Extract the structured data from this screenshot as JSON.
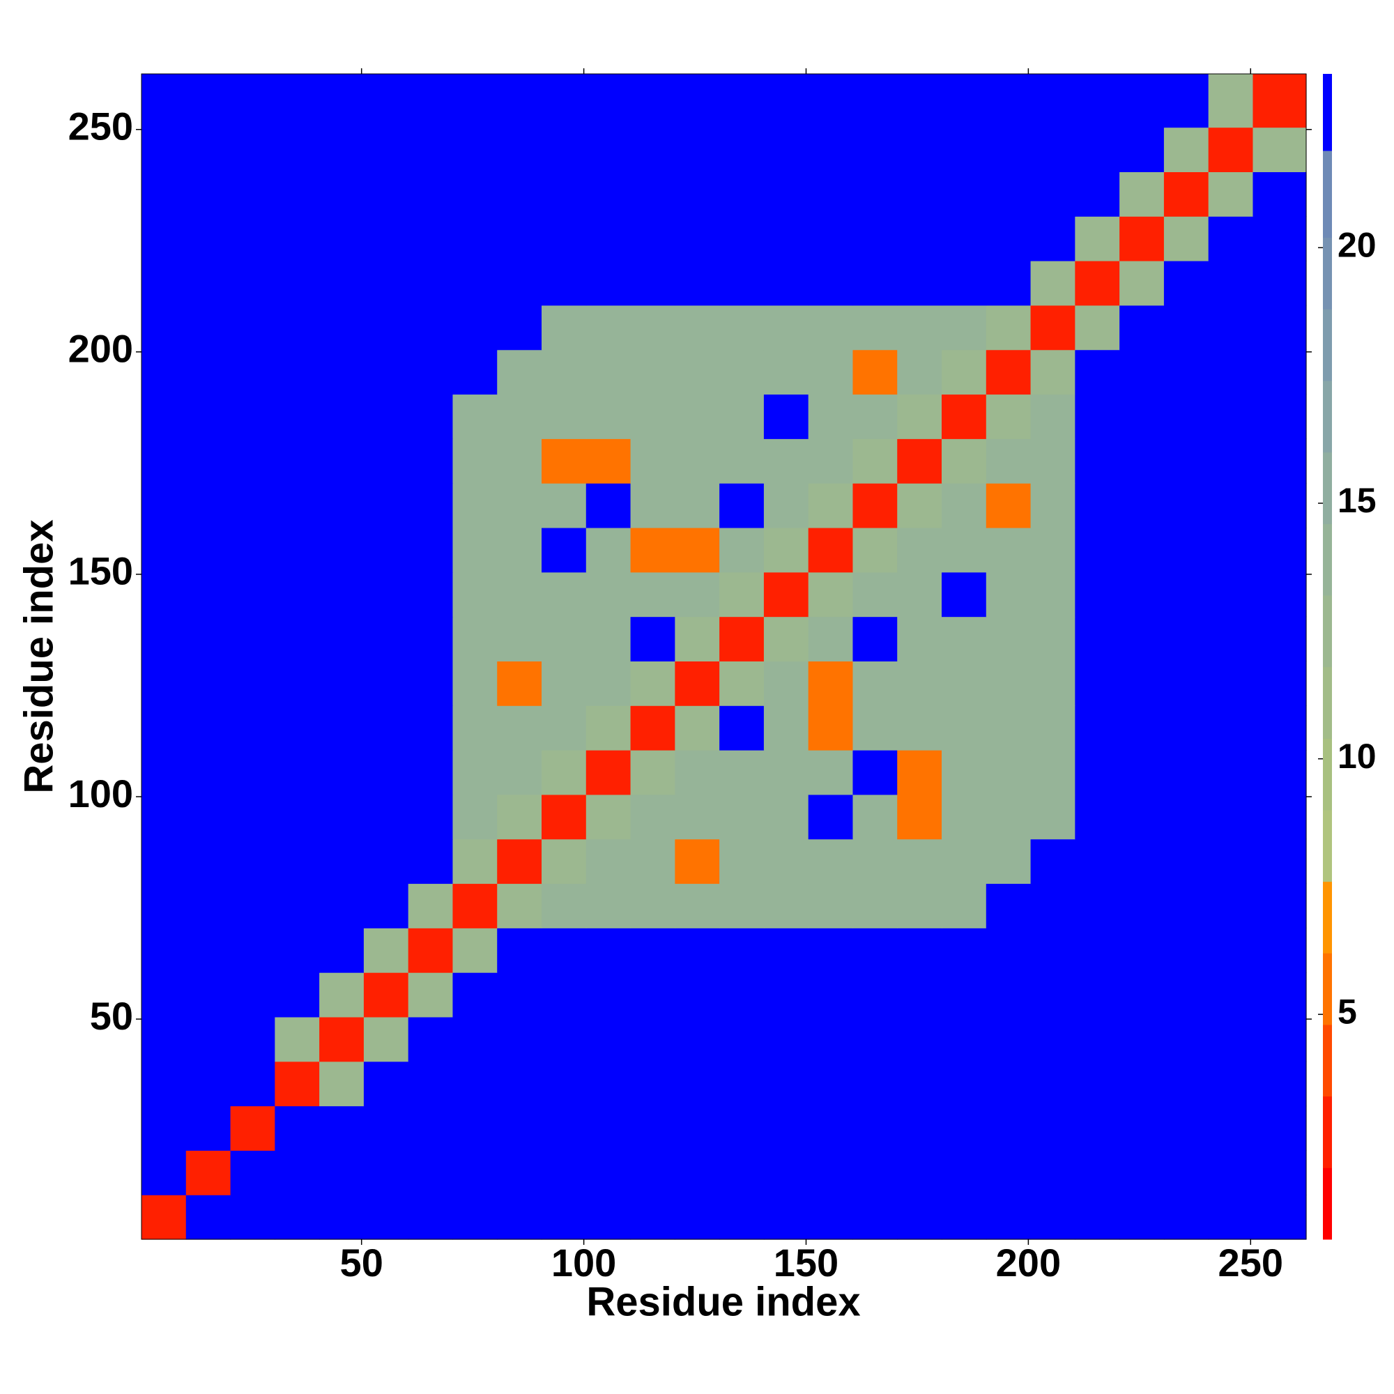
{
  "chart_data": {
    "type": "heatmap",
    "xlabel": "Residue index",
    "ylabel": "Residue index",
    "bins": [
      0.5,
      10.5,
      20.5,
      30.5,
      40.5,
      50.5,
      60.5,
      70.5,
      80.5,
      90.5,
      100.5,
      110.5,
      120.5,
      130.5,
      140.5,
      150.5,
      160.5,
      170.5,
      180.5,
      190.5,
      200.5,
      210.5,
      220.5,
      230.5,
      240.5,
      250.5,
      262.5
    ],
    "xlim": [
      0.5,
      262.5
    ],
    "ylim": [
      0.5,
      262.5
    ],
    "xticks": [
      50,
      100,
      150,
      200,
      250
    ],
    "yticks": [
      50,
      100,
      150,
      200,
      250
    ],
    "z": [
      [
        3,
        23,
        23,
        23,
        23,
        23,
        23,
        23,
        23,
        23,
        23,
        23,
        23,
        23,
        23,
        23,
        23,
        23,
        23,
        23,
        23,
        23,
        23,
        23,
        23,
        23
      ],
      [
        23,
        3,
        23,
        23,
        23,
        23,
        23,
        23,
        23,
        23,
        23,
        23,
        23,
        23,
        23,
        23,
        23,
        23,
        23,
        23,
        23,
        23,
        23,
        23,
        23,
        23
      ],
      [
        23,
        23,
        3,
        23,
        23,
        23,
        23,
        23,
        23,
        23,
        23,
        23,
        23,
        23,
        23,
        23,
        23,
        23,
        23,
        23,
        23,
        23,
        23,
        23,
        23,
        23
      ],
      [
        23,
        23,
        23,
        3,
        12,
        23,
        23,
        23,
        23,
        23,
        23,
        23,
        23,
        23,
        23,
        23,
        23,
        23,
        23,
        23,
        23,
        23,
        23,
        23,
        23,
        23
      ],
      [
        23,
        23,
        23,
        12,
        3,
        12,
        23,
        23,
        23,
        23,
        23,
        23,
        23,
        23,
        23,
        23,
        23,
        23,
        23,
        23,
        23,
        23,
        23,
        23,
        23,
        23
      ],
      [
        23,
        23,
        23,
        23,
        12,
        3,
        12,
        23,
        23,
        23,
        23,
        23,
        23,
        23,
        23,
        23,
        23,
        23,
        23,
        23,
        23,
        23,
        23,
        23,
        23,
        23
      ],
      [
        23,
        23,
        23,
        23,
        23,
        12,
        3,
        12,
        23,
        23,
        23,
        23,
        23,
        23,
        23,
        23,
        23,
        23,
        23,
        23,
        23,
        23,
        23,
        23,
        23,
        23
      ],
      [
        23,
        23,
        23,
        23,
        23,
        23,
        12,
        3,
        12,
        14,
        14,
        14,
        14,
        14,
        14,
        14,
        14,
        14,
        14,
        23,
        23,
        23,
        23,
        23,
        23,
        23
      ],
      [
        23,
        23,
        23,
        23,
        23,
        23,
        23,
        12,
        3,
        12,
        14,
        14,
        6,
        14,
        14,
        14,
        14,
        14,
        14,
        14,
        23,
        23,
        23,
        23,
        23,
        23
      ],
      [
        23,
        23,
        23,
        23,
        23,
        23,
        23,
        14,
        12,
        3,
        12,
        14,
        14,
        14,
        14,
        23,
        14,
        6,
        14,
        14,
        14,
        23,
        23,
        23,
        23,
        23
      ],
      [
        23,
        23,
        23,
        23,
        23,
        23,
        23,
        14,
        14,
        12,
        3,
        12,
        14,
        14,
        14,
        14,
        23,
        6,
        14,
        14,
        14,
        23,
        23,
        23,
        23,
        23
      ],
      [
        23,
        23,
        23,
        23,
        23,
        23,
        23,
        14,
        14,
        14,
        12,
        3,
        12,
        23,
        14,
        6,
        14,
        14,
        14,
        14,
        14,
        23,
        23,
        23,
        23,
        23
      ],
      [
        23,
        23,
        23,
        23,
        23,
        23,
        23,
        14,
        6,
        14,
        14,
        12,
        3,
        12,
        14,
        6,
        14,
        14,
        14,
        14,
        14,
        23,
        23,
        23,
        23,
        23
      ],
      [
        23,
        23,
        23,
        23,
        23,
        23,
        23,
        14,
        14,
        14,
        14,
        23,
        12,
        3,
        12,
        14,
        23,
        14,
        14,
        14,
        14,
        23,
        23,
        23,
        23,
        23
      ],
      [
        23,
        23,
        23,
        23,
        23,
        23,
        23,
        14,
        14,
        14,
        14,
        14,
        14,
        12,
        3,
        12,
        14,
        14,
        23,
        14,
        14,
        23,
        23,
        23,
        23,
        23
      ],
      [
        23,
        23,
        23,
        23,
        23,
        23,
        23,
        14,
        14,
        23,
        14,
        6,
        6,
        14,
        12,
        3,
        12,
        14,
        14,
        14,
        14,
        23,
        23,
        23,
        23,
        23
      ],
      [
        23,
        23,
        23,
        23,
        23,
        23,
        23,
        14,
        14,
        14,
        23,
        14,
        14,
        23,
        14,
        12,
        3,
        12,
        14,
        6,
        14,
        23,
        23,
        23,
        23,
        23
      ],
      [
        23,
        23,
        23,
        23,
        23,
        23,
        23,
        14,
        14,
        6,
        6,
        14,
        14,
        14,
        14,
        14,
        12,
        3,
        12,
        14,
        14,
        23,
        23,
        23,
        23,
        23
      ],
      [
        23,
        23,
        23,
        23,
        23,
        23,
        23,
        14,
        14,
        14,
        14,
        14,
        14,
        14,
        23,
        14,
        14,
        12,
        3,
        12,
        14,
        23,
        23,
        23,
        23,
        23
      ],
      [
        23,
        23,
        23,
        23,
        23,
        23,
        23,
        23,
        14,
        14,
        14,
        14,
        14,
        14,
        14,
        14,
        6,
        14,
        12,
        3,
        12,
        23,
        23,
        23,
        23,
        23
      ],
      [
        23,
        23,
        23,
        23,
        23,
        23,
        23,
        23,
        23,
        14,
        14,
        14,
        14,
        14,
        14,
        14,
        14,
        14,
        14,
        12,
        3,
        12,
        23,
        23,
        23,
        23
      ],
      [
        23,
        23,
        23,
        23,
        23,
        23,
        23,
        23,
        23,
        23,
        23,
        23,
        23,
        23,
        23,
        23,
        23,
        23,
        23,
        23,
        12,
        3,
        12,
        23,
        23,
        23
      ],
      [
        23,
        23,
        23,
        23,
        23,
        23,
        23,
        23,
        23,
        23,
        23,
        23,
        23,
        23,
        23,
        23,
        23,
        23,
        23,
        23,
        23,
        12,
        3,
        12,
        23,
        23
      ],
      [
        23,
        23,
        23,
        23,
        23,
        23,
        23,
        23,
        23,
        23,
        23,
        23,
        23,
        23,
        23,
        23,
        23,
        23,
        23,
        23,
        23,
        23,
        12,
        3,
        12,
        23
      ],
      [
        23,
        23,
        23,
        23,
        23,
        23,
        23,
        23,
        23,
        23,
        23,
        23,
        23,
        23,
        23,
        23,
        23,
        23,
        23,
        23,
        23,
        23,
        23,
        12,
        3,
        12
      ],
      [
        23,
        23,
        23,
        23,
        23,
        23,
        23,
        23,
        23,
        23,
        23,
        23,
        23,
        23,
        23,
        23,
        23,
        23,
        23,
        23,
        23,
        23,
        23,
        23,
        12,
        3
      ]
    ],
    "colorbar": {
      "levels": [
        0.6,
        2,
        3.4,
        4.8,
        6.2,
        7.6,
        9,
        10.4,
        11.8,
        13.2,
        14.6,
        16,
        17.4,
        18.8,
        20.2,
        21.9,
        23.4
      ],
      "colors": [
        "#ff0000",
        "#ff2000",
        "#ff4a00",
        "#ff7300",
        "#ff9400",
        "#b0c47e",
        "#a8c080",
        "#a2bc88",
        "#9cb890",
        "#96b498",
        "#90aea0",
        "#88a6a8",
        "#7e9cae",
        "#7692b2",
        "#6e8ab6",
        "#0000ff"
      ],
      "ticks": [
        5,
        10,
        15,
        20
      ]
    }
  }
}
